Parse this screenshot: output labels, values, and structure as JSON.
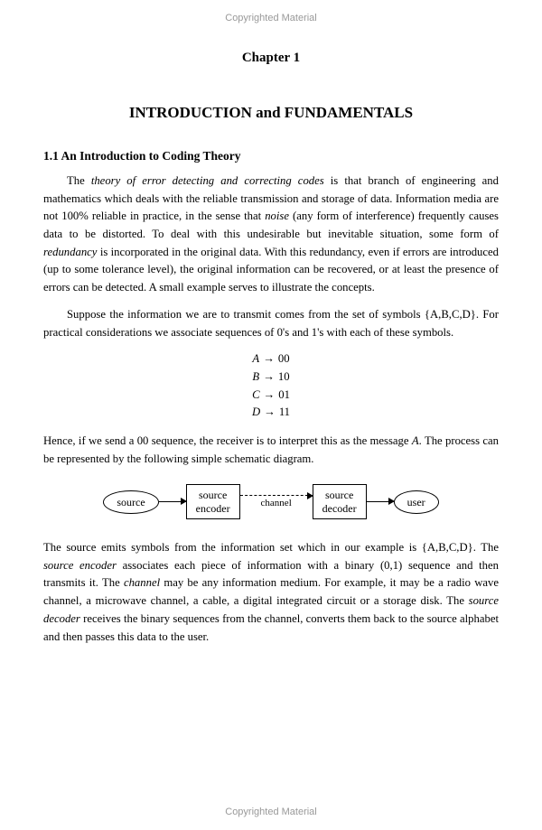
{
  "watermark": "Copyrighted Material",
  "chapter": {
    "label": "Chapter 1",
    "title": "INTRODUCTION and FUNDAMENTALS"
  },
  "section": {
    "heading": "1.1 An Introduction to Coding Theory"
  },
  "para1": {
    "t1": "The ",
    "i1": "theory of error detecting and correcting codes",
    "t2": " is that branch of engineering and mathematics which deals with the reliable transmission and storage of data. Information media are not 100% reliable in practice, in the sense that ",
    "i2": "noise",
    "t3": " (any form of interference) frequently causes data to be distorted. To deal with this undesirable but inevitable situation, some form of ",
    "i3": "redundancy",
    "t4": " is incorporated in the original data. With this redundancy, even if errors are introduced (up to some tolerance level), the original information can be recovered, or at least the presence of errors can be detected. A small example serves to illustrate the concepts."
  },
  "para2": {
    "t1": "Suppose the information we are to transmit comes from the set of symbols ",
    "set": "{A,B,C,D}",
    "t2": ". For practical considerations we associate sequences of 0's and 1's with each of these symbols."
  },
  "mapping": [
    {
      "sym": "A",
      "code": "00"
    },
    {
      "sym": "B",
      "code": "10"
    },
    {
      "sym": "C",
      "code": "01"
    },
    {
      "sym": "D",
      "code": "11"
    }
  ],
  "para3": {
    "t1": "Hence, if we send a 00 sequence, the receiver is to interpret this as the message ",
    "i1": "A",
    "t2": ". The process can be represented by the following simple schematic diagram."
  },
  "diagram": {
    "source": "source",
    "encoder_l1": "source",
    "encoder_l2": "encoder",
    "channel": "channel",
    "decoder_l1": "source",
    "decoder_l2": "decoder",
    "user": "user"
  },
  "para4": {
    "t1": "The source emits symbols from the information set which in our example is ",
    "set": "{A,B,C,D}",
    "t2": ". The ",
    "i1": "source encoder",
    "t3": " associates each piece of information with a binary (0,1) sequence and then transmits it. The ",
    "i2": "channel",
    "t4": " may be any information medium. For example, it may be a radio wave channel, a microwave channel, a cable, a digital integrated circuit or a storage disk. The ",
    "i3": "source decoder",
    "t5": " receives the binary sequences from the channel, converts them back to the source alphabet and then passes this data to the user."
  },
  "colors": {
    "text": "#000000",
    "watermark": "#999999",
    "background": "#ffffff"
  }
}
